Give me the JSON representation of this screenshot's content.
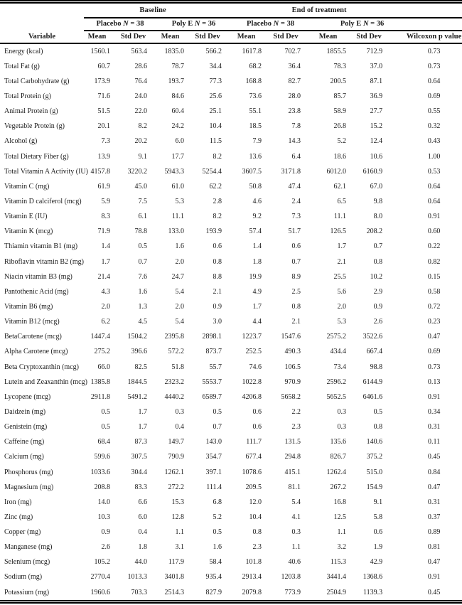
{
  "table_header": {
    "variable": "Variable",
    "groups": [
      {
        "label": "Baseline"
      },
      {
        "label": "End of treatment"
      }
    ],
    "subgroups": [
      {
        "pre": "Placebo ",
        "n": "N",
        "post": " = 38"
      },
      {
        "pre": "Poly E ",
        "n": "N",
        "post": " = 36"
      },
      {
        "pre": "Placebo ",
        "n": "N",
        "post": " = 38"
      },
      {
        "pre": "Poly E ",
        "n": "N",
        "post": " = 36"
      }
    ],
    "stat_cols": [
      "Mean",
      "Std Dev",
      "Mean",
      "Std Dev",
      "Mean",
      "Std Dev",
      "Mean",
      "Std Dev"
    ],
    "pvalue": "Wilcoxon p value"
  },
  "rows": [
    {
      "variable": "Energy (kcal)",
      "values": [
        "1560.1",
        "563.4",
        "1835.0",
        "566.2",
        "1617.8",
        "702.7",
        "1855.5",
        "712.9",
        "0.73"
      ]
    },
    {
      "variable": "Total Fat (g)",
      "values": [
        "60.7",
        "28.6",
        "78.7",
        "34.4",
        "68.2",
        "36.4",
        "78.3",
        "37.0",
        "0.73"
      ]
    },
    {
      "variable": "Total Carbohydrate (g)",
      "values": [
        "173.9",
        "76.4",
        "193.7",
        "77.3",
        "168.8",
        "82.7",
        "200.5",
        "87.1",
        "0.64"
      ]
    },
    {
      "variable": "Total Protein (g)",
      "values": [
        "71.6",
        "24.0",
        "84.6",
        "25.6",
        "73.6",
        "28.0",
        "85.7",
        "36.9",
        "0.69"
      ]
    },
    {
      "variable": "Animal Protein (g)",
      "values": [
        "51.5",
        "22.0",
        "60.4",
        "25.1",
        "55.1",
        "23.8",
        "58.9",
        "27.7",
        "0.55"
      ]
    },
    {
      "variable": "Vegetable Protein (g)",
      "values": [
        "20.1",
        "8.2",
        "24.2",
        "10.4",
        "18.5",
        "7.8",
        "26.8",
        "15.2",
        "0.32"
      ]
    },
    {
      "variable": "Alcohol (g)",
      "values": [
        "7.3",
        "20.2",
        "6.0",
        "11.5",
        "7.9",
        "14.3",
        "5.2",
        "12.4",
        "0.43"
      ]
    },
    {
      "variable": "Total Dietary Fiber (g)",
      "values": [
        "13.9",
        "9.1",
        "17.7",
        "8.2",
        "13.6",
        "6.4",
        "18.6",
        "10.6",
        "1.00"
      ]
    },
    {
      "variable": "Total Vitamin A Activity (IU)",
      "values": [
        "4157.8",
        "3220.2",
        "5943.3",
        "5254.4",
        "3607.5",
        "3171.8",
        "6012.0",
        "6160.9",
        "0.53"
      ]
    },
    {
      "variable": "Vitamin C (mg)",
      "values": [
        "61.9",
        "45.0",
        "61.0",
        "62.2",
        "50.8",
        "47.4",
        "62.1",
        "67.0",
        "0.64"
      ]
    },
    {
      "variable": "Vitamin D calciferol (mcg)",
      "values": [
        "5.9",
        "7.5",
        "5.3",
        "2.8",
        "4.6",
        "2.4",
        "6.5",
        "9.8",
        "0.64"
      ]
    },
    {
      "variable": "Vitamin E (IU)",
      "values": [
        "8.3",
        "6.1",
        "11.1",
        "8.2",
        "9.2",
        "7.3",
        "11.1",
        "8.0",
        "0.91"
      ]
    },
    {
      "variable": "Vitamin K (mcg)",
      "values": [
        "71.9",
        "78.8",
        "133.0",
        "193.9",
        "57.4",
        "51.7",
        "126.5",
        "208.2",
        "0.60"
      ]
    },
    {
      "variable": "Thiamin vitamin B1 (mg)",
      "values": [
        "1.4",
        "0.5",
        "1.6",
        "0.6",
        "1.4",
        "0.6",
        "1.7",
        "0.7",
        "0.22"
      ]
    },
    {
      "variable": "Riboflavin vitamin B2 (mg)",
      "values": [
        "1.7",
        "0.7",
        "2.0",
        "0.8",
        "1.8",
        "0.7",
        "2.1",
        "0.8",
        "0.82"
      ]
    },
    {
      "variable": "Niacin vitamin B3 (mg)",
      "values": [
        "21.4",
        "7.6",
        "24.7",
        "8.8",
        "19.9",
        "8.9",
        "25.5",
        "10.2",
        "0.15"
      ]
    },
    {
      "variable": "Pantothenic Acid (mg)",
      "values": [
        "4.3",
        "1.6",
        "5.4",
        "2.1",
        "4.9",
        "2.5",
        "5.6",
        "2.9",
        "0.58"
      ]
    },
    {
      "variable": "Vitamin B6 (mg)",
      "values": [
        "2.0",
        "1.3",
        "2.0",
        "0.9",
        "1.7",
        "0.8",
        "2.0",
        "0.9",
        "0.72"
      ]
    },
    {
      "variable": "Vitamin B12 (mcg)",
      "values": [
        "6.2",
        "4.5",
        "5.4",
        "3.0",
        "4.4",
        "2.1",
        "5.3",
        "2.6",
        "0.23"
      ]
    },
    {
      "variable": "BetaCarotene (mcg)",
      "values": [
        "1447.4",
        "1504.2",
        "2395.8",
        "2898.1",
        "1223.7",
        "1547.6",
        "2575.2",
        "3522.6",
        "0.47"
      ]
    },
    {
      "variable": "Alpha Carotene (mcg)",
      "values": [
        "275.2",
        "396.6",
        "572.2",
        "873.7",
        "252.5",
        "490.3",
        "434.4",
        "667.4",
        "0.69"
      ]
    },
    {
      "variable": "Beta Cryptoxanthin (mcg)",
      "values": [
        "66.0",
        "82.5",
        "51.8",
        "55.7",
        "74.6",
        "106.5",
        "73.4",
        "98.8",
        "0.73"
      ]
    },
    {
      "variable": "Lutein and Zeaxanthin (mcg)",
      "values": [
        "1385.8",
        "1844.5",
        "2323.2",
        "5553.7",
        "1022.8",
        "970.9",
        "2596.2",
        "6144.9",
        "0.13"
      ]
    },
    {
      "variable": "Lycopene (mcg)",
      "values": [
        "2911.8",
        "5491.2",
        "4440.2",
        "6589.7",
        "4206.8",
        "5658.2",
        "5652.5",
        "6461.6",
        "0.91"
      ]
    },
    {
      "variable": "Daidzein (mg)",
      "values": [
        "0.5",
        "1.7",
        "0.3",
        "0.5",
        "0.6",
        "2.2",
        "0.3",
        "0.5",
        "0.34"
      ]
    },
    {
      "variable": "Genistein (mg)",
      "values": [
        "0.5",
        "1.7",
        "0.4",
        "0.7",
        "0.6",
        "2.3",
        "0.3",
        "0.8",
        "0.31"
      ]
    },
    {
      "variable": "Caffeine (mg)",
      "values": [
        "68.4",
        "87.3",
        "149.7",
        "143.0",
        "111.7",
        "131.5",
        "135.6",
        "140.6",
        "0.11"
      ]
    },
    {
      "variable": "Calcium (mg)",
      "values": [
        "599.6",
        "307.5",
        "790.9",
        "354.7",
        "677.4",
        "294.8",
        "826.7",
        "375.2",
        "0.45"
      ]
    },
    {
      "variable": "Phosphorus (mg)",
      "values": [
        "1033.6",
        "304.4",
        "1262.1",
        "397.1",
        "1078.6",
        "415.1",
        "1262.4",
        "515.0",
        "0.84"
      ]
    },
    {
      "variable": "Magnesium (mg)",
      "values": [
        "208.8",
        "83.3",
        "272.2",
        "111.4",
        "209.5",
        "81.1",
        "267.2",
        "154.9",
        "0.47"
      ]
    },
    {
      "variable": "Iron (mg)",
      "values": [
        "14.0",
        "6.6",
        "15.3",
        "6.8",
        "12.0",
        "5.4",
        "16.8",
        "9.1",
        "0.31"
      ]
    },
    {
      "variable": "Zinc (mg)",
      "values": [
        "10.3",
        "6.0",
        "12.8",
        "5.2",
        "10.4",
        "4.1",
        "12.5",
        "5.8",
        "0.37"
      ]
    },
    {
      "variable": "Copper (mg)",
      "values": [
        "0.9",
        "0.4",
        "1.1",
        "0.5",
        "0.8",
        "0.3",
        "1.1",
        "0.6",
        "0.89"
      ]
    },
    {
      "variable": "Manganese  (mg)",
      "values": [
        "2.6",
        "1.8",
        "3.1",
        "1.6",
        "2.3",
        "1.1",
        "3.2",
        "1.9",
        "0.81"
      ]
    },
    {
      "variable": "Selenium (mcg)",
      "values": [
        "105.2",
        "44.0",
        "117.9",
        "58.4",
        "101.8",
        "40.6",
        "115.3",
        "42.9",
        "0.47"
      ]
    },
    {
      "variable": "Sodium (mg)",
      "values": [
        "2770.4",
        "1013.3",
        "3401.8",
        "935.4",
        "2913.4",
        "1203.8",
        "3441.4",
        "1368.6",
        "0.91"
      ]
    },
    {
      "variable": "Potassium (mg)",
      "values": [
        "1960.6",
        "703.3",
        "2514.3",
        "827.9",
        "2079.8",
        "773.9",
        "2504.9",
        "1139.3",
        "0.45"
      ]
    }
  ]
}
